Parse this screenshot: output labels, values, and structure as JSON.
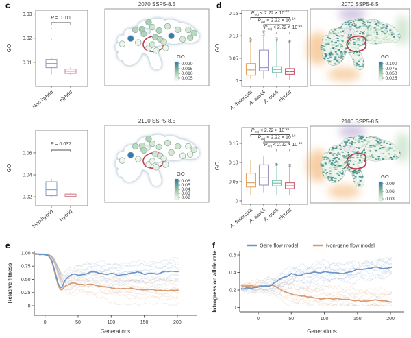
{
  "panel_labels": {
    "c": "c",
    "d": "d",
    "e": "e",
    "f": "f"
  },
  "colors": {
    "blue_box": "#8ba7c5",
    "pink_box": "#d88a95",
    "orange_box": "#e5a55e",
    "purple_box": "#a194c9",
    "teal_box": "#79c0ae",
    "red_box": "#cd6073",
    "gene_flow": "#6d96c8",
    "non_gene_flow": "#d79b72",
    "map_red_outline": "#c03a4e",
    "axis": "#6e6e6e",
    "frame": "#8c8c8c",
    "text": "#3b3b3b",
    "go_high": "#2a74b2",
    "go_mid": "#8cc39e",
    "go_low": "#f4faf3",
    "island_glow": "#9db7c9",
    "outlier_gray": "#8a8a8a"
  },
  "map_sites": [
    [
      42,
      16
    ],
    [
      28,
      27
    ],
    [
      35,
      26
    ],
    [
      46,
      23
    ],
    [
      53,
      28
    ],
    [
      62,
      22
    ],
    [
      73,
      27
    ],
    [
      84,
      27
    ],
    [
      90,
      32
    ],
    [
      23,
      40
    ],
    [
      31,
      46
    ],
    [
      49,
      38
    ],
    [
      54,
      41
    ],
    [
      58,
      45
    ],
    [
      66,
      36
    ],
    [
      78,
      41
    ],
    [
      86,
      39
    ],
    [
      14,
      48
    ],
    [
      42,
      54
    ],
    [
      50,
      58
    ],
    [
      60,
      54
    ],
    [
      46,
      49
    ],
    [
      37,
      33
    ]
  ],
  "chart_data": {
    "c1_box": {
      "type": "boxplot",
      "ylabel": "GO",
      "yticks": [
        0.01,
        0.02,
        0.03
      ],
      "ytick_labels": [
        "0.01",
        "0.02",
        "0.03"
      ],
      "ylim": [
        0,
        0.0316
      ],
      "categories": [
        "Non-hybrid",
        "Hybrid"
      ],
      "italic_labels": [
        false,
        false
      ],
      "box_colors": [
        "blue_box",
        "pink_box"
      ],
      "boxes": [
        {
          "lo": 0.005,
          "q1": 0.0078,
          "med": 0.0095,
          "q3": 0.0112,
          "hi": 0.0118,
          "outliers": [
            0.0195,
            0.024
          ]
        },
        {
          "lo": 0.0047,
          "q1": 0.0054,
          "med": 0.0063,
          "q3": 0.0072,
          "hi": 0.0079,
          "outliers": []
        }
      ],
      "annotations": [
        {
          "prefix": "P",
          "rest": " = 0.011",
          "span": [
            0,
            1
          ]
        }
      ]
    },
    "c1_map": {
      "type": "map_dots",
      "title": "2070 SSP5-8.5",
      "legend_title": "GO",
      "legend_ticks": [
        "0.020",
        "0.015",
        "0.010",
        "0.005"
      ],
      "site_values": [
        0.55,
        0.5,
        0.55,
        0.35,
        0.5,
        0.3,
        0.35,
        0.3,
        0.45,
        1,
        0.08,
        0.5,
        0.45,
        0.3,
        1,
        0.25,
        0.45,
        0.08,
        0.1,
        0.08,
        0.08,
        0.28,
        0.5
      ]
    },
    "c2_box": {
      "type": "boxplot",
      "ylabel": "GO",
      "yticks": [
        0.02,
        0.04,
        0.06
      ],
      "ytick_labels": [
        "0.02",
        "0.04",
        "0.06"
      ],
      "ylim": [
        0.012,
        0.0805
      ],
      "categories": [
        "Non-hybrid",
        "Hybrid"
      ],
      "italic_labels": [
        false,
        false
      ],
      "box_colors": [
        "blue_box",
        "pink_box"
      ],
      "boxes": [
        {
          "lo": 0.0198,
          "q1": 0.021,
          "med": 0.0266,
          "q3": 0.0338,
          "hi": 0.0364,
          "outliers": []
        },
        {
          "lo": 0.0196,
          "q1": 0.0204,
          "med": 0.0217,
          "q3": 0.0225,
          "hi": 0.0235,
          "outliers": [
            0.0174
          ]
        }
      ],
      "annotations": [
        {
          "prefix": "P",
          "rest": " = 0.037",
          "span": [
            0,
            1
          ]
        }
      ]
    },
    "c2_map": {
      "type": "map_dots",
      "title": "2100 SSP5-8.5",
      "legend_title": "GO",
      "legend_ticks": [
        "0.06",
        "0.05",
        "0.04",
        "0.03",
        "0.02"
      ],
      "site_values": [
        0.5,
        0.45,
        0.4,
        0.3,
        0.35,
        0.3,
        0.35,
        0.08,
        0.25,
        1,
        0.08,
        0.3,
        0.25,
        0.1,
        0.3,
        0.08,
        0.08,
        0.08,
        0.08,
        0.08,
        0.08,
        0.1,
        0.45
      ]
    },
    "d1_box": {
      "type": "boxplot",
      "ylabel": "GO",
      "yticks": [
        0,
        0.05,
        0.1,
        0.15
      ],
      "ytick_labels": [
        "0",
        "0.05",
        "0.10",
        "0.15"
      ],
      "ylim": [
        -0.013,
        0.157
      ],
      "categories": [
        "A. fratercula",
        "A. davidi",
        "A. hueti",
        "Hybrid"
      ],
      "italic_labels": [
        true,
        true,
        true,
        false
      ],
      "box_colors": [
        "orange_box",
        "purple_box",
        "teal_box",
        "red_box"
      ],
      "boxes": [
        {
          "lo": 0.004,
          "q1": 0.012,
          "med": 0.024,
          "q3": 0.038,
          "hi": 0.086,
          "stack": [
            0.086,
            0.097
          ]
        },
        {
          "lo": 0.004,
          "q1": 0.022,
          "med": 0.029,
          "q3": 0.068,
          "hi": 0.1,
          "stack": [
            0.1,
            0.113
          ]
        },
        {
          "lo": 0.006,
          "q1": 0.018,
          "med": 0.025,
          "q3": 0.031,
          "hi": 0.088,
          "stack": [
            0.088,
            0.096
          ]
        },
        {
          "lo": 0.002,
          "q1": 0.014,
          "med": 0.02,
          "q3": 0.027,
          "hi": 0.085,
          "stack": [
            0.085,
            0.091
          ]
        }
      ],
      "annotations": [
        {
          "prefix": "P",
          "sub": "adj",
          "rest": " < 2.22 × 10",
          "sup": "-16",
          "span": [
            0,
            3
          ]
        },
        {
          "prefix": "P",
          "sub": "adj",
          "rest": " < 2.22 × 10",
          "sup": "-16",
          "span": [
            1,
            3
          ]
        },
        {
          "prefix": "P",
          "sub": "adj",
          "rest": " < 2.22 × 10",
          "sup": "-16",
          "span": [
            2,
            3
          ]
        }
      ]
    },
    "d1_map": {
      "type": "map_raster",
      "title": "2070 SSP5-8.5",
      "legend_title": "GO",
      "legend_ticks": [
        "0.100",
        "0.075",
        "0.050",
        "0.025"
      ],
      "teal_boost": 0
    },
    "d2_box": {
      "type": "boxplot",
      "ylabel": "GO",
      "yticks": [
        0,
        0.05,
        0.1,
        0.15
      ],
      "ytick_labels": [
        "0",
        "0.05",
        "0.10",
        "0.15"
      ],
      "ylim": [
        -0.009,
        0.191
      ],
      "categories": [
        "A. fratercula",
        "A. davidi",
        "A. hueti",
        "Hybrid"
      ],
      "italic_labels": [
        true,
        true,
        true,
        false
      ],
      "box_colors": [
        "orange_box",
        "purple_box",
        "teal_box",
        "red_box"
      ],
      "boxes": [
        {
          "lo": 0.015,
          "q1": 0.036,
          "med": 0.047,
          "q3": 0.072,
          "hi": 0.105
        },
        {
          "lo": 0.022,
          "q1": 0.041,
          "med": 0.06,
          "q3": 0.094,
          "hi": 0.118
        },
        {
          "lo": 0.015,
          "q1": 0.039,
          "med": 0.046,
          "q3": 0.053,
          "hi": 0.092,
          "stack": [
            0.092,
            0.098
          ]
        },
        {
          "lo": 0.014,
          "q1": 0.032,
          "med": 0.039,
          "q3": 0.047,
          "hi": 0.09,
          "stack": [
            0.09,
            0.096
          ]
        }
      ],
      "annotations": [
        {
          "prefix": "P",
          "sub": "adj",
          "rest": " < 2.22 × 10",
          "sup": "-16",
          "span": [
            0,
            3
          ]
        },
        {
          "prefix": "P",
          "sub": "adj",
          "rest": " < 2.22 × 10",
          "sup": "-16",
          "span": [
            1,
            3
          ]
        },
        {
          "prefix": "P",
          "sub": "adj",
          "rest": " < 2.22 × 10",
          "sup": "-16",
          "span": [
            2,
            3
          ]
        }
      ]
    },
    "d2_map": {
      "type": "map_raster",
      "title": "2100 SSP5-8.5",
      "legend_title": "GO",
      "legend_ticks": [
        "0.09",
        "0.06",
        "0.03"
      ],
      "teal_boost": 0.15
    },
    "e": {
      "type": "line",
      "xlabel": "Generations",
      "ylabel": "Relative fitness",
      "xticks": [
        0,
        50,
        100,
        150,
        200
      ],
      "xtick_labels": [
        "0",
        "50",
        "100",
        "150",
        "200"
      ],
      "yticks": [
        0,
        0.25,
        0.5,
        0.75,
        1
      ],
      "ytick_labels": [
        "0",
        "0.25",
        "0.50",
        "0.75",
        "1.00"
      ],
      "xlim": [
        -16,
        203
      ],
      "ylim": [
        0,
        1.05
      ],
      "legend": false,
      "series": [
        {
          "name": "Gene flow model",
          "color_key": "gene_flow",
          "x": [
            -16,
            -10,
            -5,
            0,
            5,
            10,
            15,
            20,
            25,
            30,
            35,
            40,
            45,
            50,
            60,
            70,
            80,
            90,
            100,
            110,
            120,
            130,
            140,
            150,
            160,
            170,
            180,
            190,
            200
          ],
          "y": [
            0.98,
            0.98,
            0.97,
            0.97,
            0.96,
            0.87,
            0.66,
            0.42,
            0.33,
            0.47,
            0.55,
            0.58,
            0.6,
            0.58,
            0.6,
            0.64,
            0.62,
            0.6,
            0.61,
            0.58,
            0.6,
            0.62,
            0.64,
            0.6,
            0.62,
            0.6,
            0.64,
            0.66,
            0.65
          ]
        },
        {
          "name": "Non-gene flow model",
          "color_key": "non_gene_flow",
          "x": [
            -16,
            -10,
            -5,
            0,
            5,
            10,
            15,
            20,
            25,
            30,
            35,
            40,
            45,
            50,
            60,
            70,
            80,
            90,
            100,
            110,
            120,
            130,
            140,
            150,
            160,
            170,
            180,
            190,
            200
          ],
          "y": [
            0.98,
            0.98,
            0.97,
            0.97,
            0.95,
            0.85,
            0.62,
            0.38,
            0.3,
            0.38,
            0.41,
            0.43,
            0.44,
            0.42,
            0.4,
            0.41,
            0.38,
            0.37,
            0.35,
            0.33,
            0.32,
            0.33,
            0.31,
            0.3,
            0.31,
            0.3,
            0.29,
            0.3,
            0.3
          ]
        }
      ],
      "replicates": 10
    },
    "f": {
      "type": "line",
      "xlabel": "Generations",
      "ylabel": "Introgression allele rate",
      "xticks": [
        0,
        50,
        100,
        150,
        200
      ],
      "xtick_labels": [
        "0",
        "50",
        "100",
        "150",
        "200"
      ],
      "yticks": [
        0,
        0.2,
        0.4,
        0.6
      ],
      "ytick_labels": [
        "0",
        "0.2",
        "0.4",
        "0.6"
      ],
      "xlim": [
        -26,
        203
      ],
      "ylim": [
        0,
        0.63
      ],
      "legend": true,
      "series": [
        {
          "name": "Gene flow model",
          "color_key": "gene_flow",
          "x": [
            -26,
            -20,
            -15,
            -10,
            -5,
            0,
            5,
            10,
            15,
            20,
            25,
            30,
            35,
            40,
            45,
            50,
            60,
            70,
            80,
            90,
            100,
            110,
            120,
            130,
            140,
            150,
            160,
            170,
            180,
            190,
            200
          ],
          "y": [
            0.22,
            0.22,
            0.23,
            0.22,
            0.23,
            0.24,
            0.24,
            0.25,
            0.25,
            0.26,
            0.28,
            0.31,
            0.33,
            0.35,
            0.36,
            0.38,
            0.36,
            0.38,
            0.39,
            0.4,
            0.41,
            0.4,
            0.4,
            0.39,
            0.41,
            0.43,
            0.44,
            0.45,
            0.47,
            0.45,
            0.46
          ]
        },
        {
          "name": "Non-gene flow model",
          "color_key": "non_gene_flow",
          "x": [
            -26,
            -20,
            -15,
            -10,
            -5,
            0,
            5,
            10,
            15,
            20,
            25,
            30,
            35,
            40,
            45,
            50,
            60,
            70,
            80,
            90,
            100,
            110,
            120,
            130,
            140,
            150,
            160,
            170,
            180,
            190,
            200
          ],
          "y": [
            0.25,
            0.24,
            0.24,
            0.25,
            0.24,
            0.25,
            0.25,
            0.24,
            0.25,
            0.25,
            0.24,
            0.22,
            0.2,
            0.18,
            0.17,
            0.15,
            0.14,
            0.13,
            0.12,
            0.11,
            0.1,
            0.1,
            0.1,
            0.09,
            0.09,
            0.09,
            0.08,
            0.08,
            0.08,
            0.08,
            0.07
          ]
        }
      ],
      "replicates": 10
    }
  }
}
